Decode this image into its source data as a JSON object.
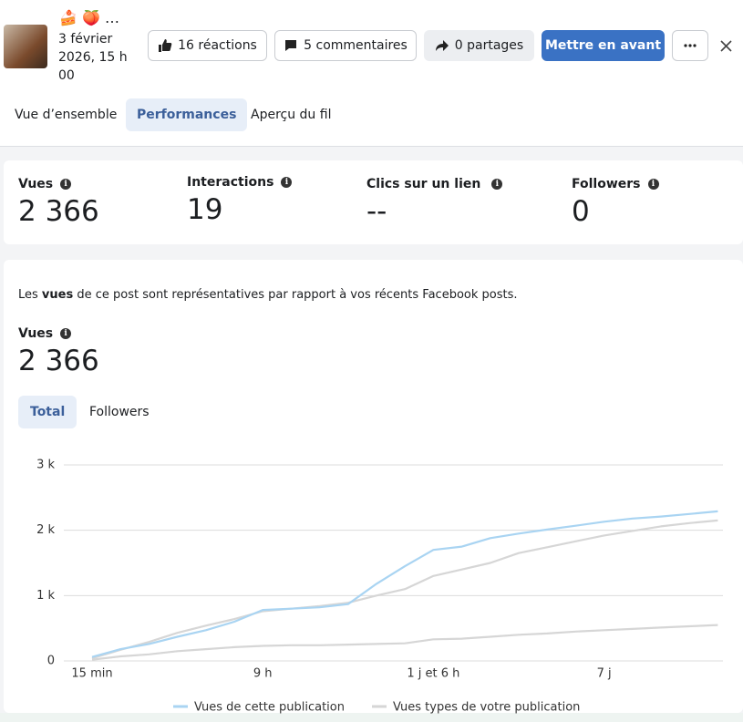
{
  "header": {
    "emojis": "🍰 🍑 …",
    "date": "3 février 2026, 15 h 00"
  },
  "buttons": [
    "16 réactions",
    "5 commentaires",
    "0 partages",
    "Mettre en avant"
  ],
  "tabs": [
    "Vue d’ensemble",
    "Performances",
    "Aperçu du fil"
  ],
  "stats": [
    {
      "label": "Vues",
      "value": "2 366"
    },
    {
      "label": "Interactions",
      "value": "19"
    },
    {
      "label": "Clics sur un lien",
      "value": "--"
    },
    {
      "label": "Followers",
      "value": "0"
    }
  ],
  "note": {
    "before": "Les ",
    "bold": "vues",
    "after": " de ce post sont représentatives par rapport à vos récents Facebook posts."
  },
  "metric": {
    "label": "Vues",
    "value": "2 366"
  },
  "subtabs": [
    "Total",
    "Followers"
  ],
  "chart_data": {
    "type": "line",
    "categories": [
      "15 min",
      null,
      null,
      null,
      null,
      null,
      "9 h",
      null,
      null,
      null,
      null,
      null,
      "1 j et 6 h",
      null,
      null,
      null,
      null,
      null,
      "7 j",
      null,
      null,
      null,
      null
    ],
    "series": [
      {
        "name": "Vues de cette publication",
        "color": "#a9d4f2",
        "values": [
          60,
          180,
          260,
          370,
          470,
          600,
          780,
          800,
          820,
          870,
          1180,
          1450,
          1700,
          1750,
          1880,
          1950,
          2010,
          2070,
          2130,
          2180,
          2210,
          2250,
          2290
        ]
      },
      {
        "name": "Vues types de votre publication",
        "color": "#d6d6d6",
        "values": [
          40,
          170,
          290,
          430,
          540,
          640,
          760,
          800,
          840,
          890,
          1000,
          1100,
          1300,
          1400,
          1500,
          1650,
          1740,
          1830,
          1920,
          1990,
          2060,
          2110,
          2150
        ]
      },
      {
        "color": "#d6d6d6",
        "values": [
          20,
          70,
          100,
          150,
          180,
          210,
          230,
          240,
          240,
          250,
          260,
          270,
          330,
          340,
          370,
          400,
          420,
          450,
          470,
          490,
          510,
          530,
          550
        ]
      }
    ],
    "ylim": [
      0,
      3000
    ],
    "yticks": [
      0,
      {
        "value": 1000,
        "label": "1 k"
      },
      {
        "value": 2000,
        "label": "2 k"
      },
      {
        "value": 3000,
        "label": "3 k"
      }
    ],
    "grid": true
  }
}
